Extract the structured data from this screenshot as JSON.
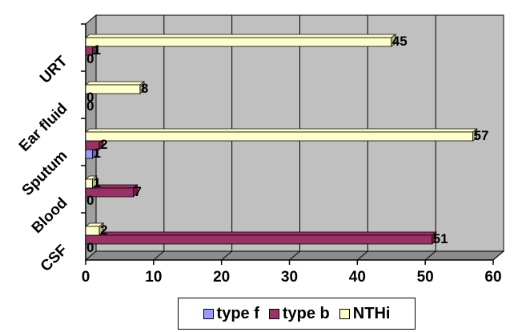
{
  "chart_data": {
    "type": "bar",
    "orientation": "horizontal",
    "style": "3d",
    "categories": [
      "CSF",
      "Blood",
      "Sputum",
      "Ear fluid",
      "URT"
    ],
    "series": [
      {
        "name": "type f",
        "color": "#9999ff",
        "values": [
          0,
          0,
          1,
          0,
          0
        ]
      },
      {
        "name": "type b",
        "color": "#993366",
        "values": [
          51,
          7,
          2,
          0,
          1
        ]
      },
      {
        "name": "NTHi",
        "color": "#ffffcc",
        "values": [
          2,
          1,
          57,
          8,
          45
        ]
      }
    ],
    "xlim": [
      0,
      60
    ],
    "xticks": [
      "0",
      "10",
      "20",
      "30",
      "40",
      "50",
      "60"
    ],
    "grid": true,
    "plot_background": "#c0c0c0",
    "legend_position": "bottom"
  }
}
